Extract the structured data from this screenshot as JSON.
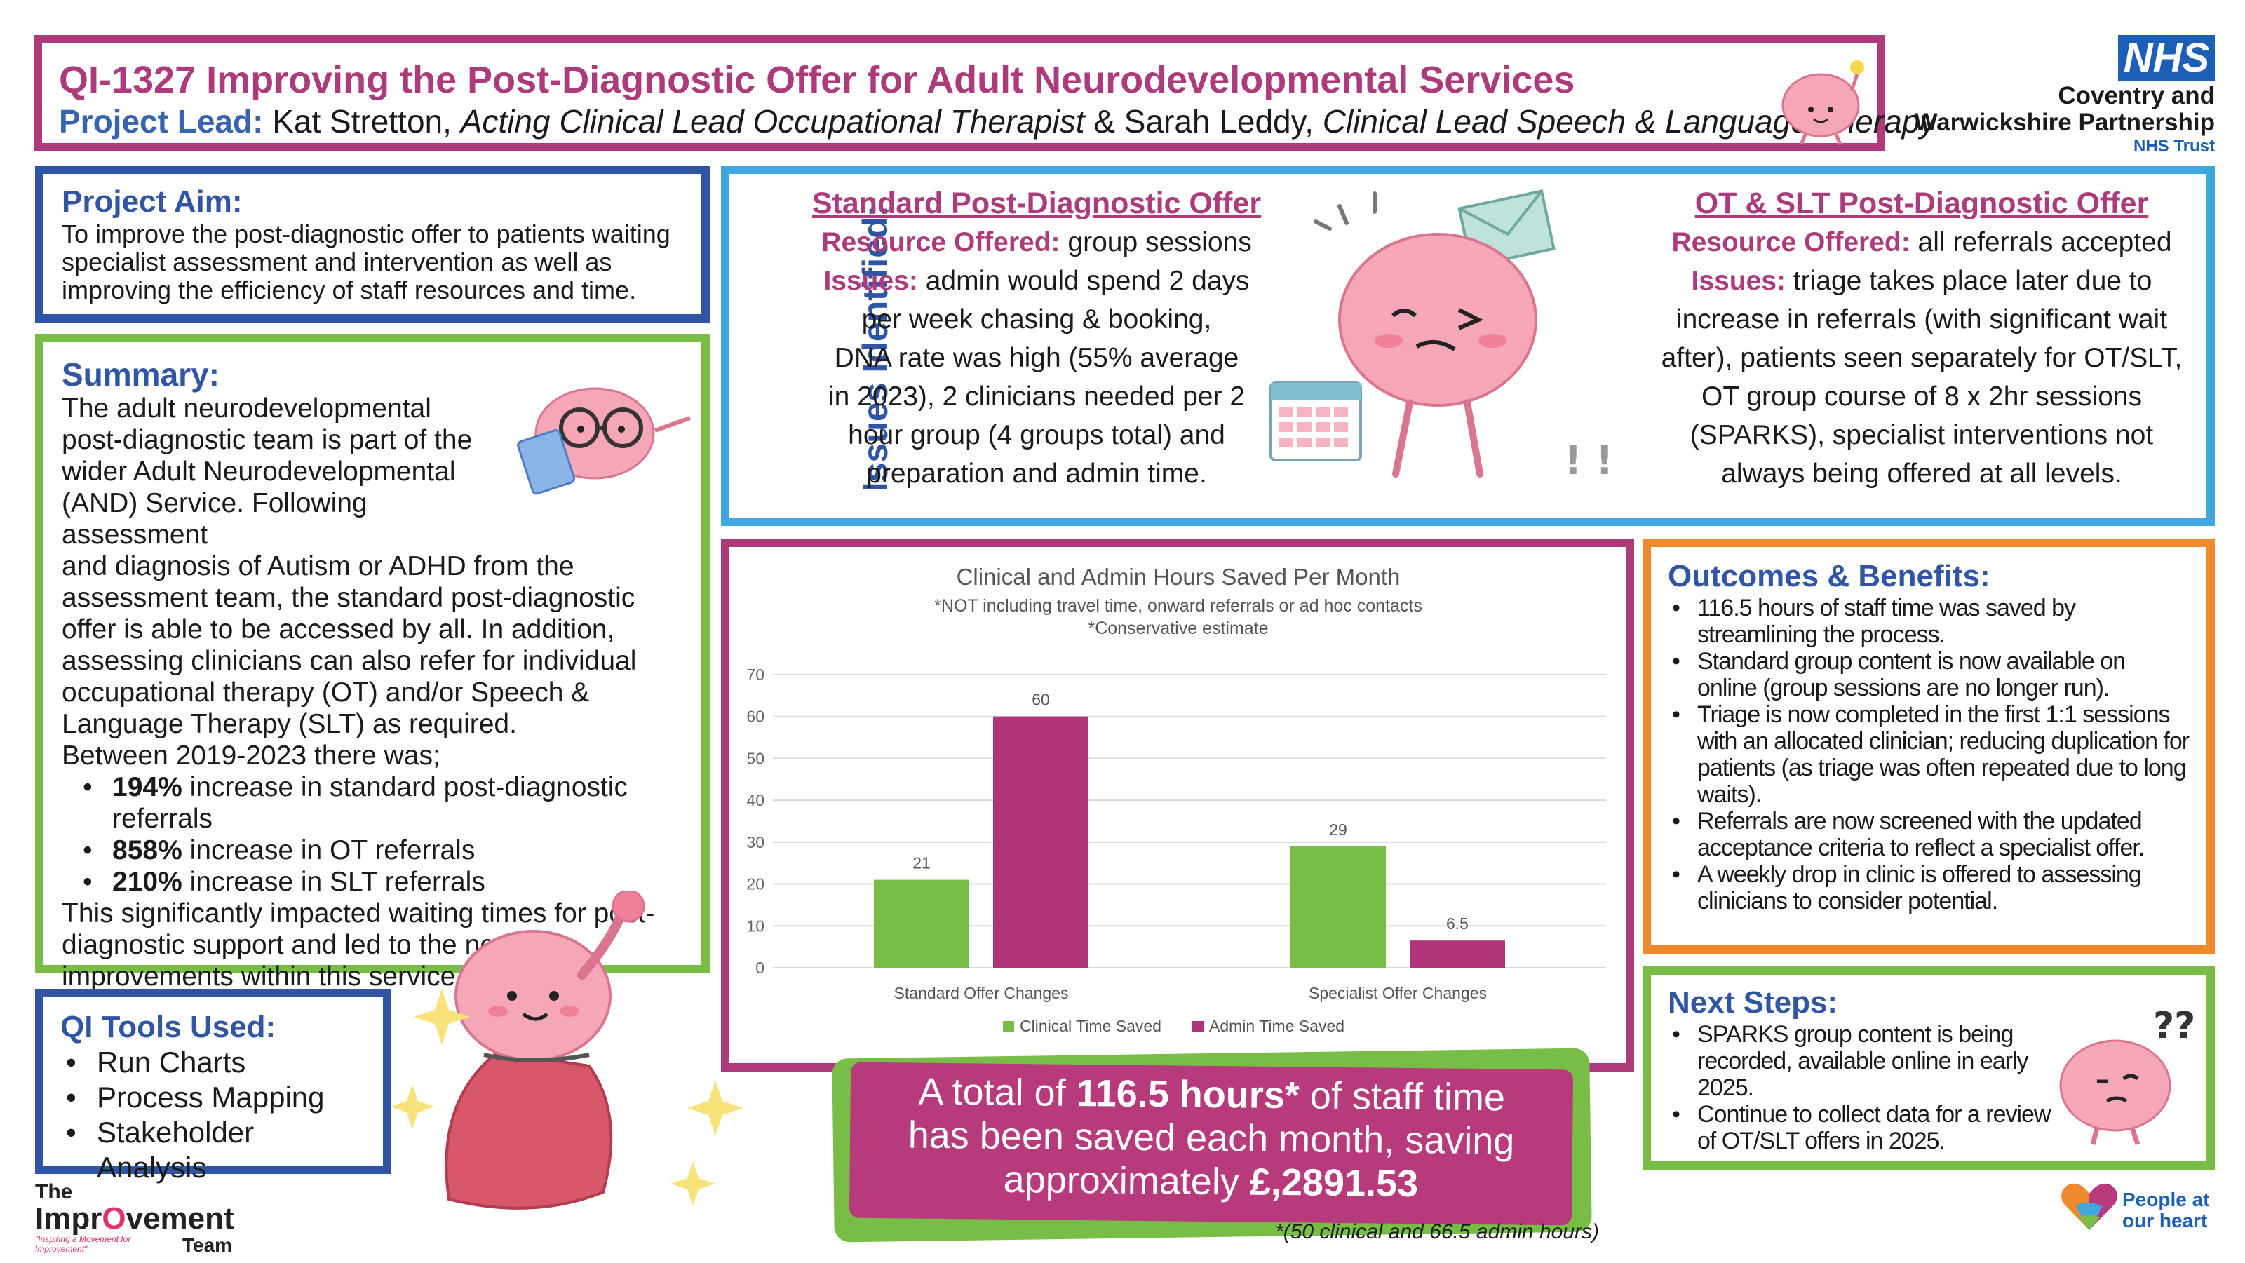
{
  "title": {
    "main": "QI-1327 Improving the Post-Diagnostic Offer for Adult Neurodevelopmental Services",
    "lead_label": "Project Lead:",
    "lead_name1": "Kat Stretton,",
    "lead_role1": "Acting Clinical Lead Occupational Therapist",
    "amp": "&",
    "lead_name2": "Sarah Leddy,",
    "lead_role2": "Clinical Lead Speech & Language Therapy"
  },
  "nhs": {
    "badge": "NHS",
    "line1": "Coventry and",
    "line2": "Warwickshire Partnership",
    "line3": "NHS Trust"
  },
  "aim": {
    "heading": "Project Aim:",
    "text": "To improve the post-diagnostic offer to patients waiting specialist assessment and intervention as well as improving the efficiency of staff resources and time."
  },
  "summary": {
    "heading": "Summary:",
    "intro_lines": [
      "The adult neurodevelopmental",
      "post-diagnostic team is part of the",
      "wider Adult Neurodevelopmental",
      "(AND) Service. Following assessment"
    ],
    "body": "and diagnosis of Autism or ADHD from the assessment team, the standard post-diagnostic offer is able to be accessed by all. In addition, assessing clinicians can also refer for individual occupational therapy (OT) and/or Speech & Language Therapy (SLT) as required.",
    "between": "Between 2019-2023 there was;",
    "stats": [
      {
        "value": "194%",
        "text": "increase in standard post-diagnostic referrals"
      },
      {
        "value": "858%",
        "text": "increase in OT referrals"
      },
      {
        "value": "210%",
        "text": "increase in SLT referrals"
      }
    ],
    "closing": "This significantly impacted  waiting times for post-diagnostic support and led to the need for improvements within this service."
  },
  "tools": {
    "heading": "QI Tools Used:",
    "items": [
      "Run Charts",
      "Process Mapping",
      "Stakeholder Analysis"
    ]
  },
  "improvement_logo": {
    "line1": "The",
    "word_a": "Impr",
    "word_b": "O",
    "word_c": "vement",
    "tagline": "\"Inspiring a Movement for Improvement\"",
    "team": "Team"
  },
  "issues": {
    "side_label": "Issues Identified:",
    "standard": {
      "heading": "Standard Post-Diagnostic Offer",
      "resource_label": "Resource Offered:",
      "resource_text": "group sessions",
      "issues_label": "Issues:",
      "lines": [
        "admin would spend 2 days",
        "per week chasing & booking,",
        "DNA rate was high (55% average",
        "in 2023), 2 clinicians needed per 2",
        "hour group (4 groups total) and",
        "preparation and admin time."
      ]
    },
    "ot_slt": {
      "heading": "OT & SLT Post-Diagnostic Offer",
      "resource_label": "Resource Offered:",
      "resource_text": "all referrals accepted",
      "issues_label": "Issues:",
      "lines": [
        "triage takes place later due to",
        "increase in referrals (with significant wait",
        "after), patients seen separately for OT/SLT,",
        "OT group course of 8 x 2hr sessions",
        "(SPARKS), specialist interventions not",
        "always being offered at all levels."
      ]
    }
  },
  "chart_data": {
    "type": "bar",
    "title": "Clinical and Admin Hours Saved Per Month",
    "subtitle1": "*NOT including travel time, onward referrals or ad hoc contacts",
    "subtitle2": "*Conservative estimate",
    "categories": [
      "Standard Offer Changes",
      "Specialist Offer Changes"
    ],
    "series": [
      {
        "name": "Clinical Time Saved",
        "values": [
          21,
          29
        ],
        "labels": [
          "21",
          "29"
        ],
        "color": "#77bd46"
      },
      {
        "name": "Admin Time Saved",
        "values": [
          60,
          6.5
        ],
        "labels": [
          "60",
          "6.5"
        ],
        "color": "#b03478"
      }
    ],
    "ylim": [
      0,
      70
    ],
    "yticks": [
      "0",
      "10",
      "20",
      "30",
      "40",
      "50",
      "60",
      "70"
    ],
    "grid": true,
    "legend": "bottom",
    "xlabel": "",
    "ylabel": ""
  },
  "outcomes": {
    "heading": "Outcomes & Benefits:",
    "items": [
      "116.5 hours of staff time was saved by streamlining the process.",
      "Standard group content is now available on online (group sessions are no longer run).",
      "Triage is now completed in the first 1:1 sessions with an allocated clinician; reducing duplication for patients (as triage was often repeated due to long waits).",
      "Referrals are now screened with the updated acceptance criteria to reflect a specialist offer.",
      "A weekly drop in clinic is offered to assessing clinicians to consider potential."
    ]
  },
  "next_steps": {
    "heading": "Next Steps:",
    "items": [
      "SPARKS group content is being recorded, available online in early 2025.",
      "Continue to collect data for a review of OT/SLT offers in 2025."
    ]
  },
  "total": {
    "line1_a": "A total of",
    "line1_b": "116.5 hours*",
    "line1_c": "of staff time",
    "line2": "has been saved each month, saving",
    "line3_a": "approximately",
    "line3_b": "£,2891.53",
    "footnote": "*(50 clinical and 66.5 admin hours)"
  },
  "people_logo": {
    "line1": "People at",
    "line2": "our heart"
  },
  "colors": {
    "magenta": "#ad3a7a",
    "blue": "#2f55a4",
    "green": "#77bd46",
    "orange": "#ee8a2b",
    "sky": "#40a6df",
    "nhs_blue": "#1b5fb6"
  }
}
